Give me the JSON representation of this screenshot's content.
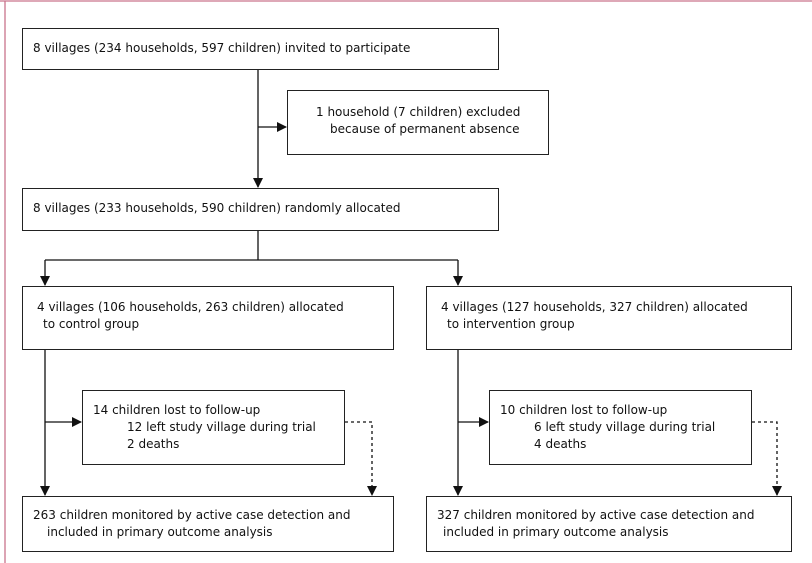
{
  "nodes": [
    {
      "lines": [
        "8 villages (234 households, 597 children) invited to participate"
      ]
    },
    {
      "lines": [
        "1 household (7 children) excluded",
        "because of permanent absence"
      ]
    },
    {
      "lines": [
        "8 villages (233 households, 590 children) randomly allocated"
      ]
    },
    {
      "lines": [
        "4 villages (106 households, 263 children) allocated",
        "to control group"
      ]
    },
    {
      "lines": [
        "4 villages (127 households, 327 children) allocated",
        "to intervention group"
      ]
    },
    {
      "lines": [
        "14 children lost to follow-up",
        "12 left study village during trial",
        "2 deaths"
      ]
    },
    {
      "lines": [
        "10 children lost to follow-up",
        "6 left study village during trial",
        "4 deaths"
      ]
    },
    {
      "lines": [
        "263 children monitored by active case detection and",
        "included in primary outcome analysis"
      ]
    },
    {
      "lines": [
        "327 children monitored by active case detection and",
        "included in primary outcome analysis"
      ]
    }
  ]
}
